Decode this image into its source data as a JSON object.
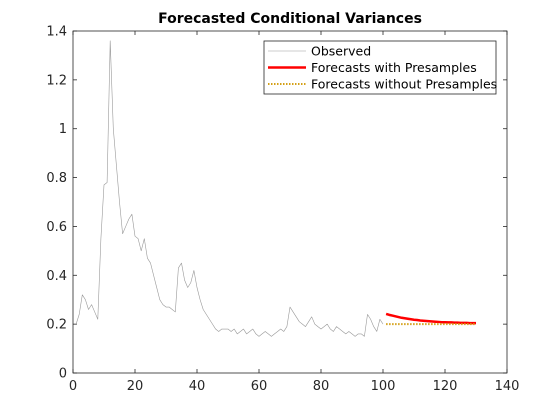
{
  "chart_data": {
    "type": "line",
    "title": "Forecasted Conditional Variances",
    "xlabel": "",
    "ylabel": "",
    "xlim": [
      0,
      140
    ],
    "ylim": [
      0,
      1.4
    ],
    "xticks": [
      0,
      20,
      40,
      60,
      80,
      100,
      120,
      140
    ],
    "yticks": [
      0,
      0.2,
      0.4,
      0.6,
      0.8,
      1,
      1.2,
      1.4
    ],
    "grid": false,
    "legend_position": "top-right",
    "series": [
      {
        "name": "Observed",
        "color": "#999999",
        "style": "solid",
        "x": [
          1,
          2,
          3,
          4,
          5,
          6,
          7,
          8,
          9,
          10,
          11,
          12,
          13,
          14,
          15,
          16,
          17,
          18,
          19,
          20,
          21,
          22,
          23,
          24,
          25,
          26,
          27,
          28,
          29,
          30,
          31,
          32,
          33,
          34,
          35,
          36,
          37,
          38,
          39,
          40,
          41,
          42,
          43,
          44,
          45,
          46,
          47,
          48,
          49,
          50,
          51,
          52,
          53,
          54,
          55,
          56,
          57,
          58,
          59,
          60,
          61,
          62,
          63,
          64,
          65,
          66,
          67,
          68,
          69,
          70,
          71,
          72,
          73,
          74,
          75,
          76,
          77,
          78,
          79,
          80,
          81,
          82,
          83,
          84,
          85,
          86,
          87,
          88,
          89,
          90,
          91,
          92,
          93,
          94,
          95,
          96,
          97,
          98,
          99,
          100
        ],
        "y": [
          0.2,
          0.24,
          0.32,
          0.3,
          0.26,
          0.28,
          0.25,
          0.22,
          0.55,
          0.77,
          0.78,
          1.36,
          1.0,
          0.85,
          0.7,
          0.57,
          0.6,
          0.63,
          0.65,
          0.56,
          0.55,
          0.5,
          0.55,
          0.47,
          0.45,
          0.4,
          0.35,
          0.3,
          0.28,
          0.27,
          0.27,
          0.26,
          0.25,
          0.43,
          0.45,
          0.38,
          0.35,
          0.37,
          0.42,
          0.35,
          0.3,
          0.26,
          0.24,
          0.22,
          0.2,
          0.18,
          0.17,
          0.18,
          0.18,
          0.18,
          0.17,
          0.18,
          0.16,
          0.17,
          0.18,
          0.16,
          0.17,
          0.18,
          0.16,
          0.15,
          0.16,
          0.17,
          0.16,
          0.15,
          0.16,
          0.17,
          0.18,
          0.17,
          0.19,
          0.27,
          0.25,
          0.23,
          0.21,
          0.2,
          0.19,
          0.21,
          0.23,
          0.2,
          0.19,
          0.18,
          0.19,
          0.2,
          0.18,
          0.17,
          0.19,
          0.18,
          0.17,
          0.16,
          0.17,
          0.16,
          0.15,
          0.16,
          0.16,
          0.15,
          0.24,
          0.22,
          0.19,
          0.17,
          0.22,
          0.2
        ],
        "width": 0.6
      },
      {
        "name": "Forecasts with Presamples",
        "color": "#ff0000",
        "style": "solid",
        "x": [
          101,
          102,
          103,
          104,
          105,
          106,
          107,
          108,
          109,
          110,
          111,
          112,
          113,
          114,
          115,
          116,
          117,
          118,
          119,
          120,
          121,
          122,
          123,
          124,
          125,
          126,
          127,
          128,
          129,
          130
        ],
        "y": [
          0.242,
          0.238,
          0.235,
          0.232,
          0.229,
          0.226,
          0.224,
          0.222,
          0.22,
          0.218,
          0.217,
          0.215,
          0.214,
          0.213,
          0.212,
          0.211,
          0.21,
          0.209,
          0.208,
          0.208,
          0.207,
          0.207,
          0.206,
          0.206,
          0.205,
          0.205,
          0.205,
          0.204,
          0.204,
          0.204
        ],
        "width": 2.5
      },
      {
        "name": "Forecasts without Presamples",
        "color": "#d4a017",
        "style": "dotted",
        "x": [
          101,
          102,
          103,
          104,
          105,
          106,
          107,
          108,
          109,
          110,
          111,
          112,
          113,
          114,
          115,
          116,
          117,
          118,
          119,
          120,
          121,
          122,
          123,
          124,
          125,
          126,
          127,
          128,
          129,
          130
        ],
        "y": [
          0.2,
          0.2,
          0.2,
          0.2,
          0.2,
          0.2,
          0.2,
          0.2,
          0.2,
          0.2,
          0.2,
          0.2,
          0.2,
          0.2,
          0.2,
          0.2,
          0.2,
          0.2,
          0.2,
          0.2,
          0.2,
          0.2,
          0.2,
          0.2,
          0.2,
          0.2,
          0.2,
          0.2,
          0.2,
          0.2
        ],
        "width": 2
      }
    ]
  }
}
